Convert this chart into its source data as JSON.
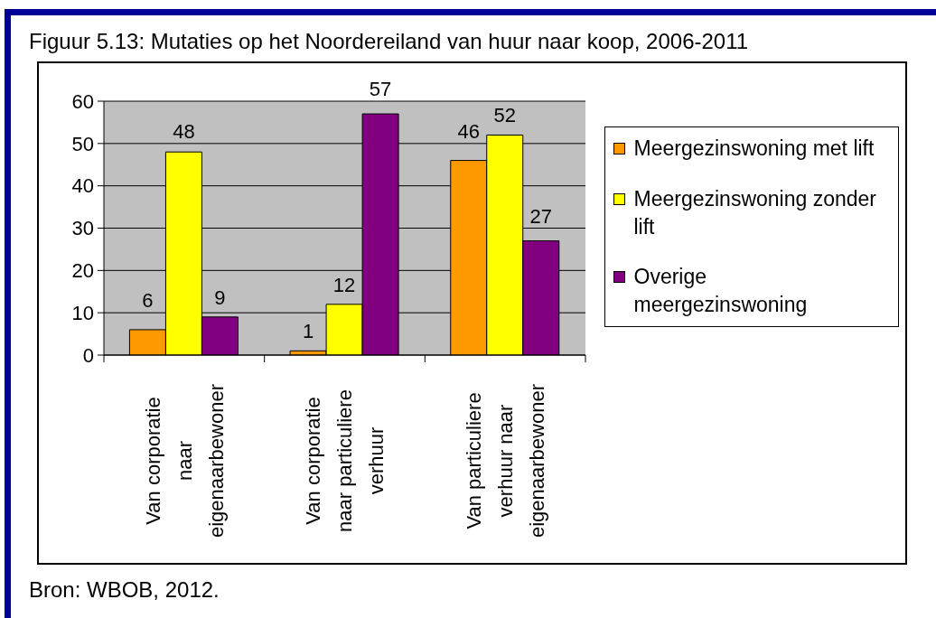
{
  "chart_data": {
    "type": "bar",
    "title": "Figuur 5.13: Mutaties op het Noordereiland van huur naar koop, 2006-2011",
    "categories": [
      "Van corporatie naar eigenaarbewoner",
      "Van corporatie naar particuliere verhuur",
      "Van particuliere verhuur naar eigenaarbewoner"
    ],
    "series": [
      {
        "name": "Meergezinswoning met lift",
        "color": "#ff9900",
        "values": [
          6,
          1,
          46
        ]
      },
      {
        "name": "Meergezinswoning zonder lift",
        "color": "#ffff00",
        "values": [
          48,
          12,
          52
        ]
      },
      {
        "name": "Overige meergezinswoning",
        "color": "#800080",
        "values": [
          9,
          57,
          27
        ]
      }
    ],
    "ylim": [
      0,
      60
    ],
    "yticks": [
      0,
      10,
      20,
      30,
      40,
      50,
      60
    ],
    "grid": "y",
    "legend": "right",
    "data_labels": true,
    "annotations": [
      "Bron: WBOB, 2012."
    ]
  }
}
